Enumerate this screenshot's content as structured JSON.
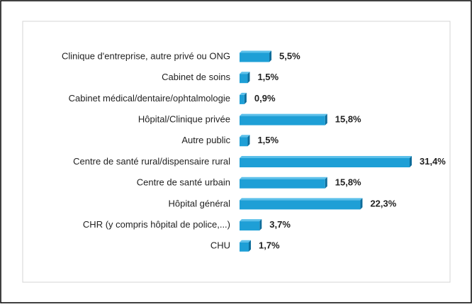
{
  "chart_data": {
    "type": "bar",
    "orientation": "horizontal",
    "categories": [
      "Clinique d'entreprise, autre privé ou ONG",
      "Cabinet de soins",
      "Cabinet médical/dentaire/ophtalmologie",
      "Hôpital/Clinique privée",
      "Autre public",
      "Centre de santé rural/dispensaire rural",
      "Centre de santé urbain",
      "Hôpital général",
      "CHR (y compris hôpital de police,...)",
      "CHU"
    ],
    "values": [
      5.5,
      1.5,
      0.9,
      15.8,
      1.5,
      31.4,
      15.8,
      22.3,
      3.7,
      1.7
    ],
    "value_labels": [
      "5,5%",
      "1,5%",
      "0,9%",
      "15,8%",
      "1,5%",
      "31,4%",
      "15,8%",
      "22,3%",
      "3,7%",
      "1,7%"
    ],
    "color": "#1e9fd6"
  }
}
